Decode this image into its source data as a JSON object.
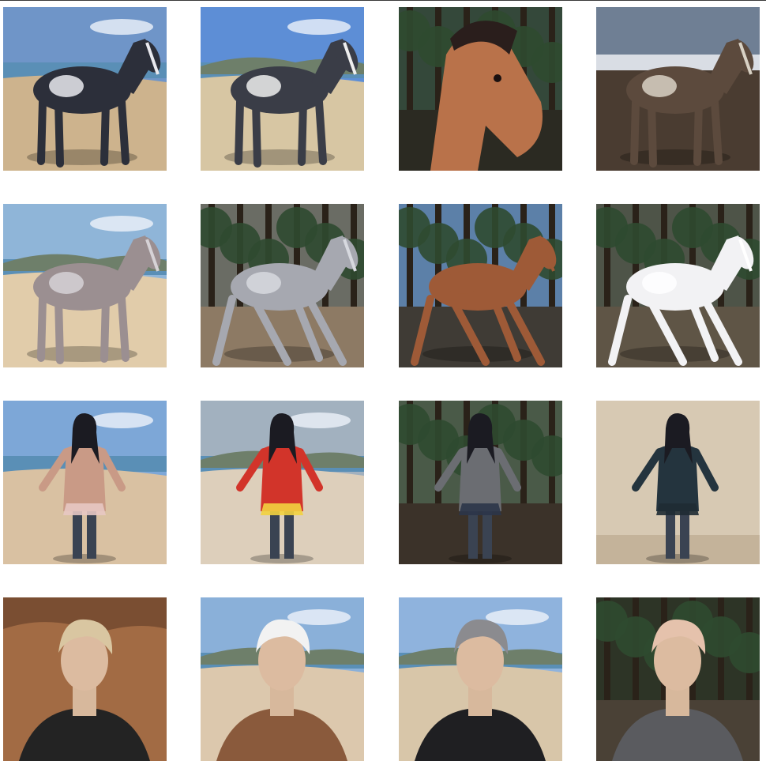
{
  "gallery": {
    "rows": [
      [
        {
          "subject": "paint-horse",
          "scene": "beach",
          "colors": {
            "sky": "#6f95c8",
            "ground": "#cdb38d",
            "body": "#2c2f3a",
            "patch": "#e9e9ee"
          }
        },
        {
          "subject": "paint-horse",
          "scene": "beach-dune",
          "colors": {
            "sky": "#5d8ed6",
            "ground": "#d7c6a3",
            "body": "#3a3d47",
            "patch": "#eeeeee"
          }
        },
        {
          "subject": "chestnut-horse-head",
          "scene": "forest",
          "colors": {
            "sky": "#34483a",
            "ground": "#2b2a22",
            "body": "#b9724a",
            "patch": "#b9724a"
          }
        },
        {
          "subject": "pinto-horse",
          "scene": "desert",
          "colors": {
            "sky": "#6f7f94",
            "ground": "#4a3c31",
            "body": "#5c4a3d",
            "patch": "#d8d1c4"
          }
        }
      ],
      [
        {
          "subject": "grey-horse",
          "scene": "beach-grass",
          "colors": {
            "sky": "#8fb5d8",
            "ground": "#e1ccaa",
            "body": "#9b8f91",
            "patch": "#d6d2d6"
          }
        },
        {
          "subject": "grey-horse-rearing",
          "scene": "forest-path",
          "colors": {
            "sky": "#6a6c64",
            "ground": "#8d7a64",
            "body": "#a6a8b0",
            "patch": "#d7d9df"
          }
        },
        {
          "subject": "chestnut-horse-trot",
          "scene": "pine-forest",
          "colors": {
            "sky": "#5c80a8",
            "ground": "#3f3b35",
            "body": "#9e5a37",
            "patch": "#9e5a37"
          }
        },
        {
          "subject": "white-horse",
          "scene": "forest-path",
          "colors": {
            "sky": "#4e5448",
            "ground": "#5f5546",
            "body": "#f2f2f4",
            "patch": "#ffffff"
          }
        }
      ],
      [
        {
          "subject": "woman-waving",
          "scene": "beach-surf",
          "colors": {
            "sky": "#7da7d7",
            "ground": "#d9c1a2",
            "body": "#c99a86",
            "patch": "#e7c8c3"
          }
        },
        {
          "subject": "woman-red-dress",
          "scene": "beach-dune",
          "colors": {
            "sky": "#a2b1bf",
            "ground": "#ddcfbb",
            "body": "#d2342a",
            "patch": "#f2d23f"
          }
        },
        {
          "subject": "woman-grey-sweater",
          "scene": "forest",
          "colors": {
            "sky": "#4a5a48",
            "ground": "#3b3229",
            "body": "#6b6d72",
            "patch": "#2c3549"
          }
        },
        {
          "subject": "man-dark-outfit",
          "scene": "sand-backdrop",
          "colors": {
            "sky": "#d7c9b3",
            "ground": "#c4b39a",
            "body": "#24343e",
            "patch": "#1f2b33"
          }
        }
      ],
      [
        {
          "subject": "man-blond",
          "scene": "mars-terrain",
          "colors": {
            "sky": "#7a4e32",
            "ground": "#a26b44",
            "body": "#232323",
            "patch": "#d9c6a1"
          }
        },
        {
          "subject": "woman-long-hair",
          "scene": "beach-hills",
          "colors": {
            "sky": "#8ab0d9",
            "ground": "#dcc8ad",
            "body": "#8a5a3c",
            "patch": "#f2f2f2"
          }
        },
        {
          "subject": "man-black-jacket",
          "scene": "beach-hills",
          "colors": {
            "sky": "#8fb3dd",
            "ground": "#d8c6a9",
            "body": "#1f1f22",
            "patch": "#8b8b8f"
          }
        },
        {
          "subject": "woman-striped-top",
          "scene": "forest",
          "colors": {
            "sky": "#2d3426",
            "ground": "#4a4136",
            "body": "#5a5b5f",
            "patch": "#e5c2ac"
          }
        }
      ]
    ]
  }
}
